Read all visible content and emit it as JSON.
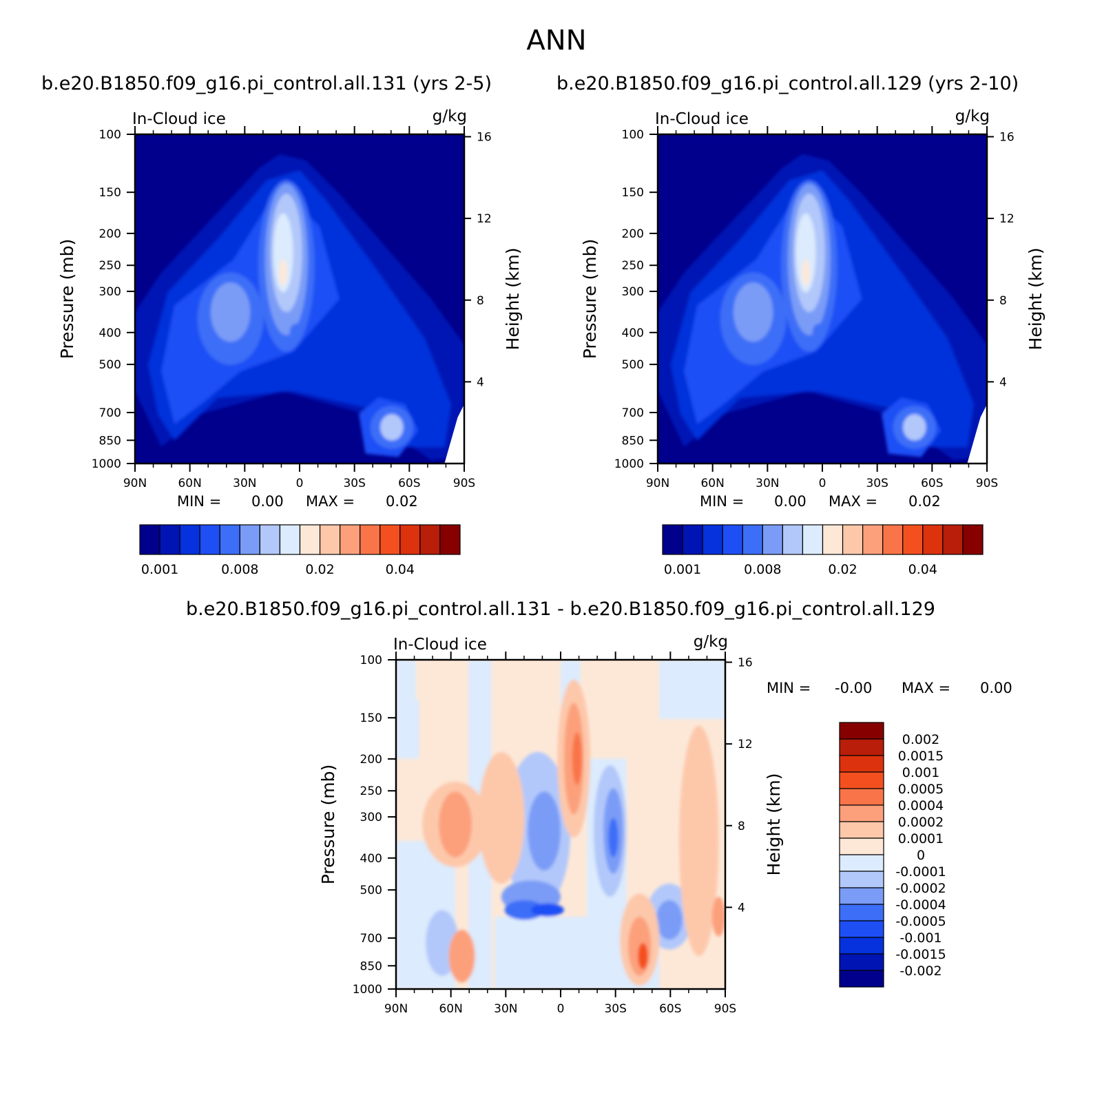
{
  "figure": {
    "season": "ANN",
    "variable": "In-Cloud ice",
    "units": "g/kg"
  },
  "panels": [
    {
      "title": "b.e20.B1850.f09_g16.pi_control.all.131 (yrs 2-5)",
      "variable": "In-Cloud ice",
      "units": "g/kg",
      "ylabel": "Pressure (mb)",
      "y2label": "Height (km)",
      "min_label": "MIN =",
      "min_value": "0.00",
      "max_label": "MAX =",
      "max_value": "0.02"
    },
    {
      "title": "b.e20.B1850.f09_g16.pi_control.all.129 (yrs 2-10)",
      "variable": "In-Cloud ice",
      "units": "g/kg",
      "ylabel": "Pressure (mb)",
      "y2label": "Height (km)",
      "min_label": "MIN =",
      "min_value": "0.00",
      "max_label": "MAX =",
      "max_value": "0.02"
    },
    {
      "title": "b.e20.B1850.f09_g16.pi_control.all.131 - b.e20.B1850.f09_g16.pi_control.all.129",
      "variable": "In-Cloud ice",
      "units": "g/kg",
      "ylabel": "Pressure (mb)",
      "y2label": "Height (km)",
      "min_label": "MIN =",
      "min_value": "-0.00",
      "max_label": "MAX =",
      "max_value": "0.00"
    }
  ],
  "chart_data": [
    {
      "type": "heatmap",
      "x_ticks": [
        "90N",
        "60N",
        "30N",
        "0",
        "30S",
        "60S",
        "90S"
      ],
      "x_range": [
        90,
        -90
      ],
      "y_ticks": [
        100,
        150,
        200,
        250,
        300,
        400,
        500,
        700,
        850,
        1000
      ],
      "y_range": [
        100,
        1000
      ],
      "y_scale": "log",
      "y2_ticks": [
        4,
        8,
        12,
        16
      ],
      "colorbar_labels": [
        "0.001",
        "0.008",
        "0.02",
        "0.04"
      ],
      "colorbar_colors": [
        "#00008c",
        "#0014b4",
        "#0532dc",
        "#1e4ff5",
        "#3c6ef7",
        "#7a9cf7",
        "#b2c8fa",
        "#dcebfd",
        "#fde8d8",
        "#fdc8aa",
        "#fca07c",
        "#f97448",
        "#f4501f",
        "#dc320e",
        "#b81e09",
        "#870000"
      ],
      "colorbar_position": "bottom"
    },
    {
      "type": "heatmap",
      "x_ticks": [
        "90N",
        "60N",
        "30N",
        "0",
        "30S",
        "60S",
        "90S"
      ],
      "x_range": [
        90,
        -90
      ],
      "y_ticks": [
        100,
        150,
        200,
        250,
        300,
        400,
        500,
        700,
        850,
        1000
      ],
      "y_range": [
        100,
        1000
      ],
      "y_scale": "log",
      "y2_ticks": [
        4,
        8,
        12,
        16
      ],
      "colorbar_labels": [
        "0.001",
        "0.008",
        "0.02",
        "0.04"
      ],
      "colorbar_colors": [
        "#00008c",
        "#0014b4",
        "#0532dc",
        "#1e4ff5",
        "#3c6ef7",
        "#7a9cf7",
        "#b2c8fa",
        "#dcebfd",
        "#fde8d8",
        "#fdc8aa",
        "#fca07c",
        "#f97448",
        "#f4501f",
        "#dc320e",
        "#b81e09",
        "#870000"
      ],
      "colorbar_position": "bottom"
    },
    {
      "type": "heatmap",
      "x_ticks": [
        "90N",
        "60N",
        "30N",
        "0",
        "30S",
        "60S",
        "90S"
      ],
      "x_range": [
        90,
        -90
      ],
      "y_ticks": [
        100,
        150,
        200,
        250,
        300,
        400,
        500,
        700,
        850,
        1000
      ],
      "y_range": [
        100,
        1000
      ],
      "y_scale": "log",
      "y2_ticks": [
        4,
        8,
        12,
        16
      ],
      "colorbar_labels": [
        "0.002",
        "0.0015",
        "0.001",
        "0.0005",
        "0.0004",
        "0.0002",
        "0.0001",
        "0",
        "-0.0001",
        "-0.0002",
        "-0.0004",
        "-0.0005",
        "-0.001",
        "-0.0015",
        "-0.002"
      ],
      "colorbar_colors": [
        "#870000",
        "#b81e09",
        "#dc320e",
        "#f4501f",
        "#f97448",
        "#fca07c",
        "#fdc8aa",
        "#fde8d8",
        "#dcebfd",
        "#b2c8fa",
        "#7a9cf7",
        "#3c6ef7",
        "#1e4ff5",
        "#0532dc",
        "#0014b4",
        "#00008c"
      ],
      "colorbar_position": "right"
    }
  ]
}
